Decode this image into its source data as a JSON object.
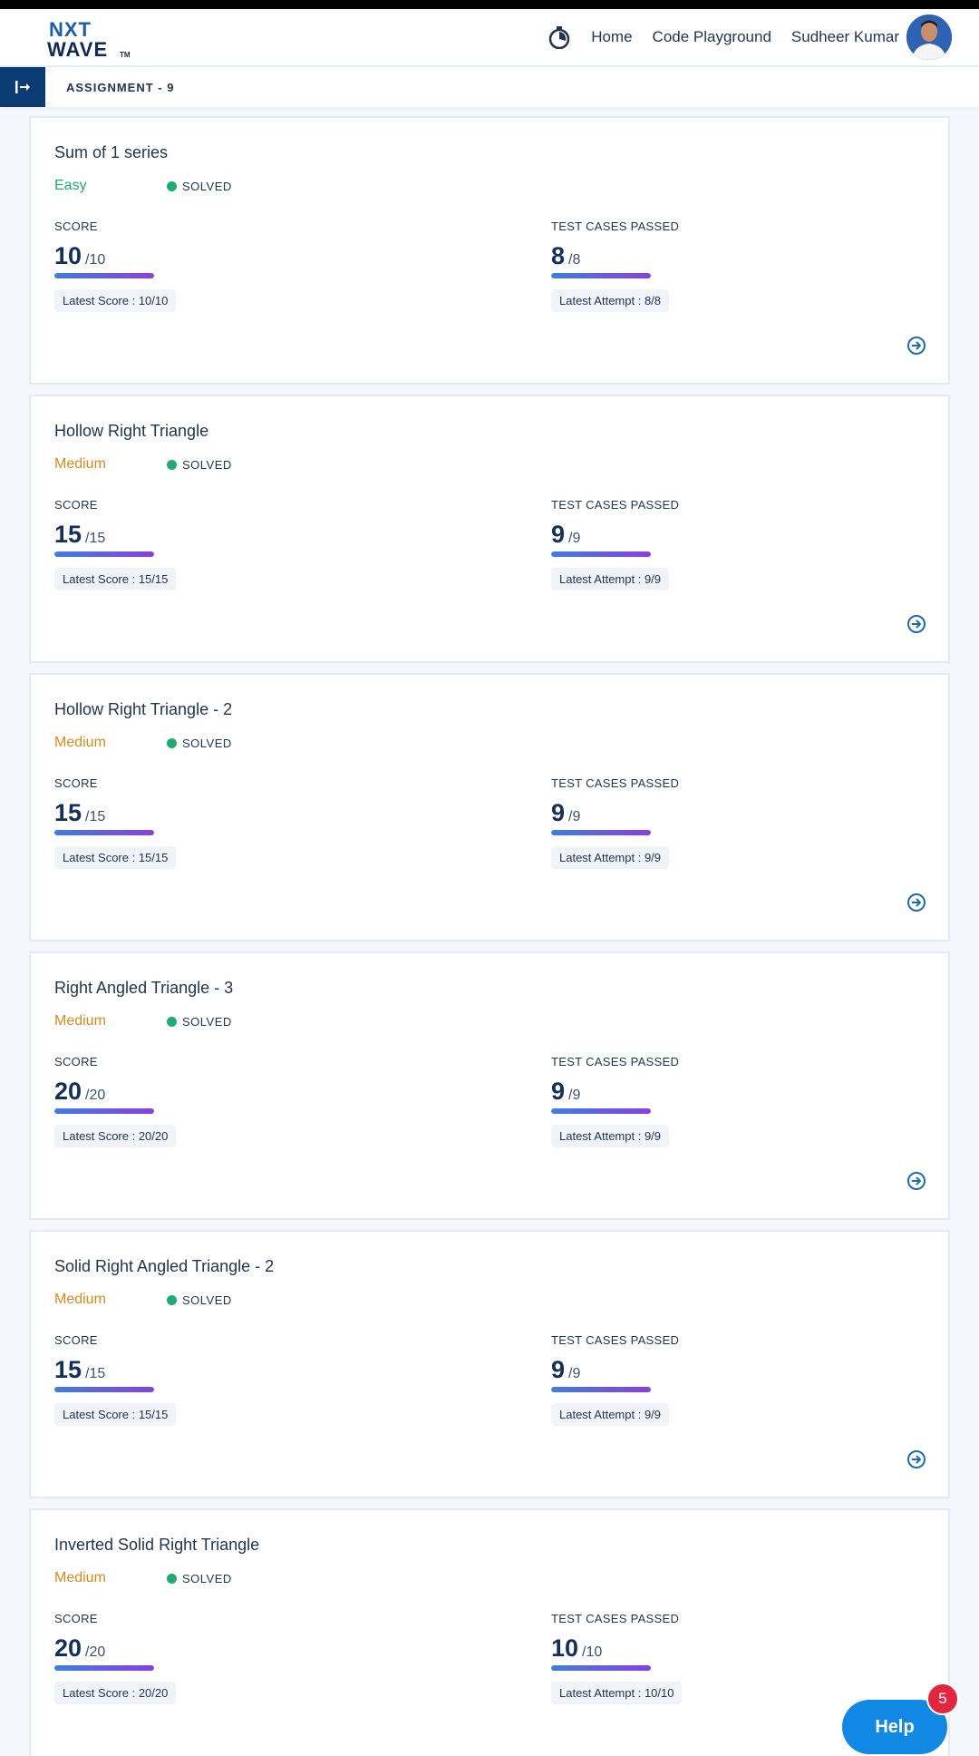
{
  "header": {
    "logo_line1": "NXT",
    "logo_line2": "WAVE",
    "logo_tm": "TM",
    "nav": {
      "home": "Home",
      "playground": "Code Playground",
      "user": "Sudheer Kumar"
    }
  },
  "subheader": {
    "title": "ASSIGNMENT - 9"
  },
  "labels": {
    "score": "SCORE",
    "tests": "TEST CASES PASSED"
  },
  "cards": [
    {
      "title": "Sum of 1 series",
      "difficulty": "Easy",
      "status": "SOLVED",
      "score": "10",
      "score_total": "/10",
      "score_fraction": 1.0,
      "score_latest": "Latest Score : 10/10",
      "tests": "8",
      "tests_total": "/8",
      "tests_fraction": 1.0,
      "tests_latest": "Latest Attempt : 8/8"
    },
    {
      "title": "Hollow Right Triangle",
      "difficulty": "Medium",
      "status": "SOLVED",
      "score": "15",
      "score_total": "/15",
      "score_fraction": 1.0,
      "score_latest": "Latest Score : 15/15",
      "tests": "9",
      "tests_total": "/9",
      "tests_fraction": 1.0,
      "tests_latest": "Latest Attempt : 9/9"
    },
    {
      "title": "Hollow Right Triangle - 2",
      "difficulty": "Medium",
      "status": "SOLVED",
      "score": "15",
      "score_total": "/15",
      "score_fraction": 1.0,
      "score_latest": "Latest Score : 15/15",
      "tests": "9",
      "tests_total": "/9",
      "tests_fraction": 1.0,
      "tests_latest": "Latest Attempt : 9/9"
    },
    {
      "title": "Right Angled Triangle - 3",
      "difficulty": "Medium",
      "status": "SOLVED",
      "score": "20",
      "score_total": "/20",
      "score_fraction": 1.0,
      "score_latest": "Latest Score : 20/20",
      "tests": "9",
      "tests_total": "/9",
      "tests_fraction": 1.0,
      "tests_latest": "Latest Attempt : 9/9"
    },
    {
      "title": "Solid Right Angled Triangle - 2",
      "difficulty": "Medium",
      "status": "SOLVED",
      "score": "15",
      "score_total": "/15",
      "score_fraction": 1.0,
      "score_latest": "Latest Score : 15/15",
      "tests": "9",
      "tests_total": "/9",
      "tests_fraction": 1.0,
      "tests_latest": "Latest Attempt : 9/9"
    },
    {
      "title": "Inverted Solid Right Triangle",
      "difficulty": "Medium",
      "status": "SOLVED",
      "score": "20",
      "score_total": "/20",
      "score_fraction": 1.0,
      "score_latest": "Latest Score : 20/20",
      "tests": "10",
      "tests_total": "/10",
      "tests_fraction": 1.0,
      "tests_latest": "Latest Attempt : 10/10"
    }
  ],
  "help": {
    "label": "Help",
    "badge": "5"
  },
  "colors": {
    "easy": "#1fab72",
    "medium": "#d98a1c",
    "accent": "#0b3b73",
    "help": "#1188e4",
    "badge": "#e3263f"
  },
  "icons": {
    "timer": "stopwatch-icon",
    "sidebar": "sidebar-toggle-icon",
    "go": "arrow-right-circle-icon"
  }
}
